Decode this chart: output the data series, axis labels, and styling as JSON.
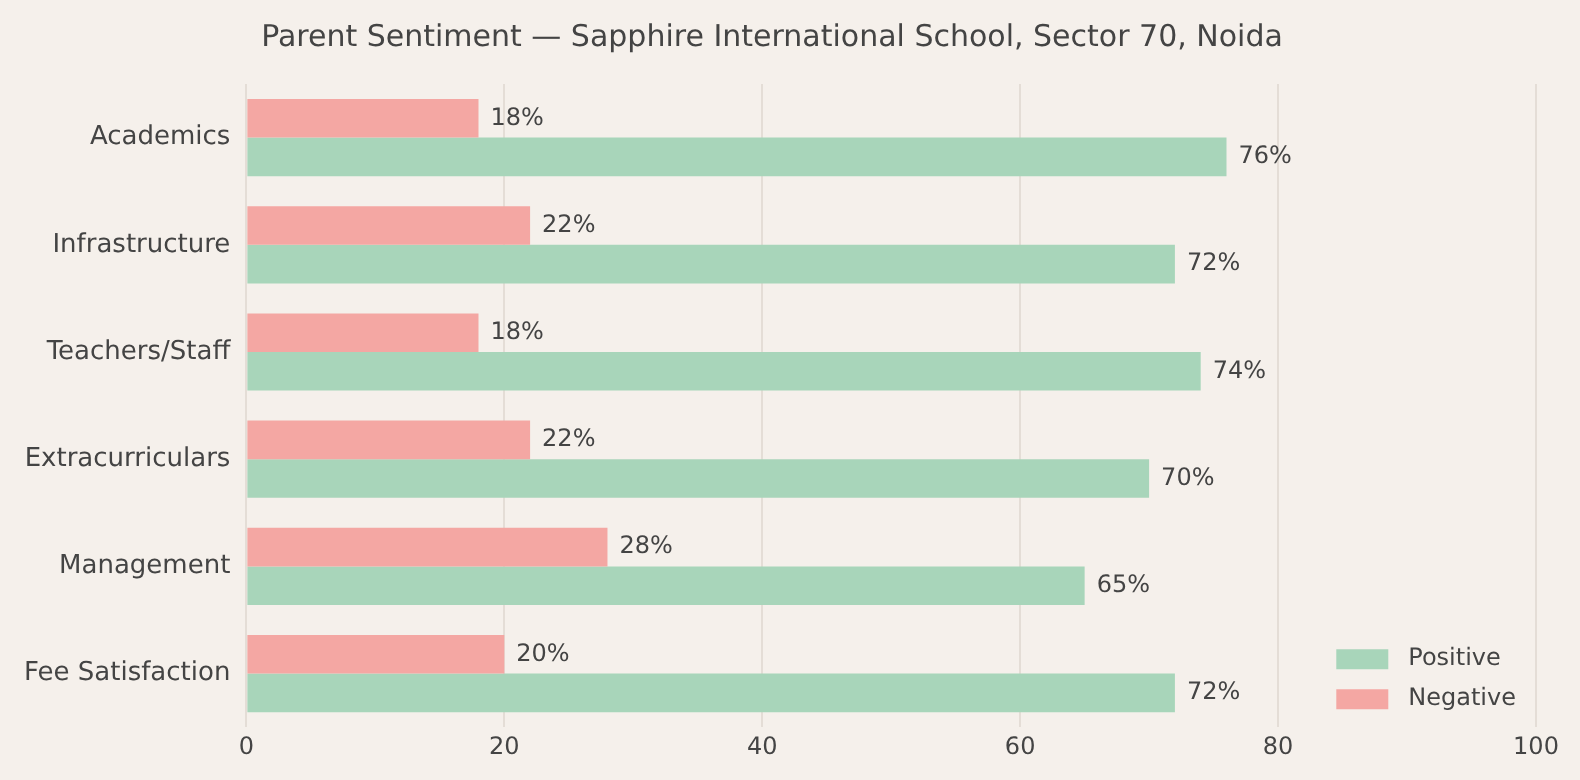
{
  "chart_data": {
    "type": "bar",
    "orientation": "horizontal",
    "title": "Parent Sentiment — Sapphire International School, Sector 70, Noida",
    "categories": [
      "Academics",
      "Infrastructure",
      "Teachers/Staff",
      "Extracurriculars",
      "Management",
      "Fee Satisfaction"
    ],
    "series": [
      {
        "name": "Positive",
        "color": "#a8d5ba",
        "values": [
          76,
          72,
          74,
          70,
          65,
          72
        ],
        "value_labels": [
          "76%",
          "72%",
          "74%",
          "70%",
          "65%",
          "72%"
        ]
      },
      {
        "name": "Negative",
        "color": "#f4a7a3",
        "values": [
          18,
          22,
          18,
          22,
          28,
          20
        ],
        "value_labels": [
          "18%",
          "22%",
          "18%",
          "22%",
          "28%",
          "20%"
        ]
      }
    ],
    "xlim": [
      0,
      100
    ],
    "xticks": [
      0,
      20,
      40,
      60,
      80,
      100
    ],
    "grid": "x",
    "legend": "bottom right"
  }
}
